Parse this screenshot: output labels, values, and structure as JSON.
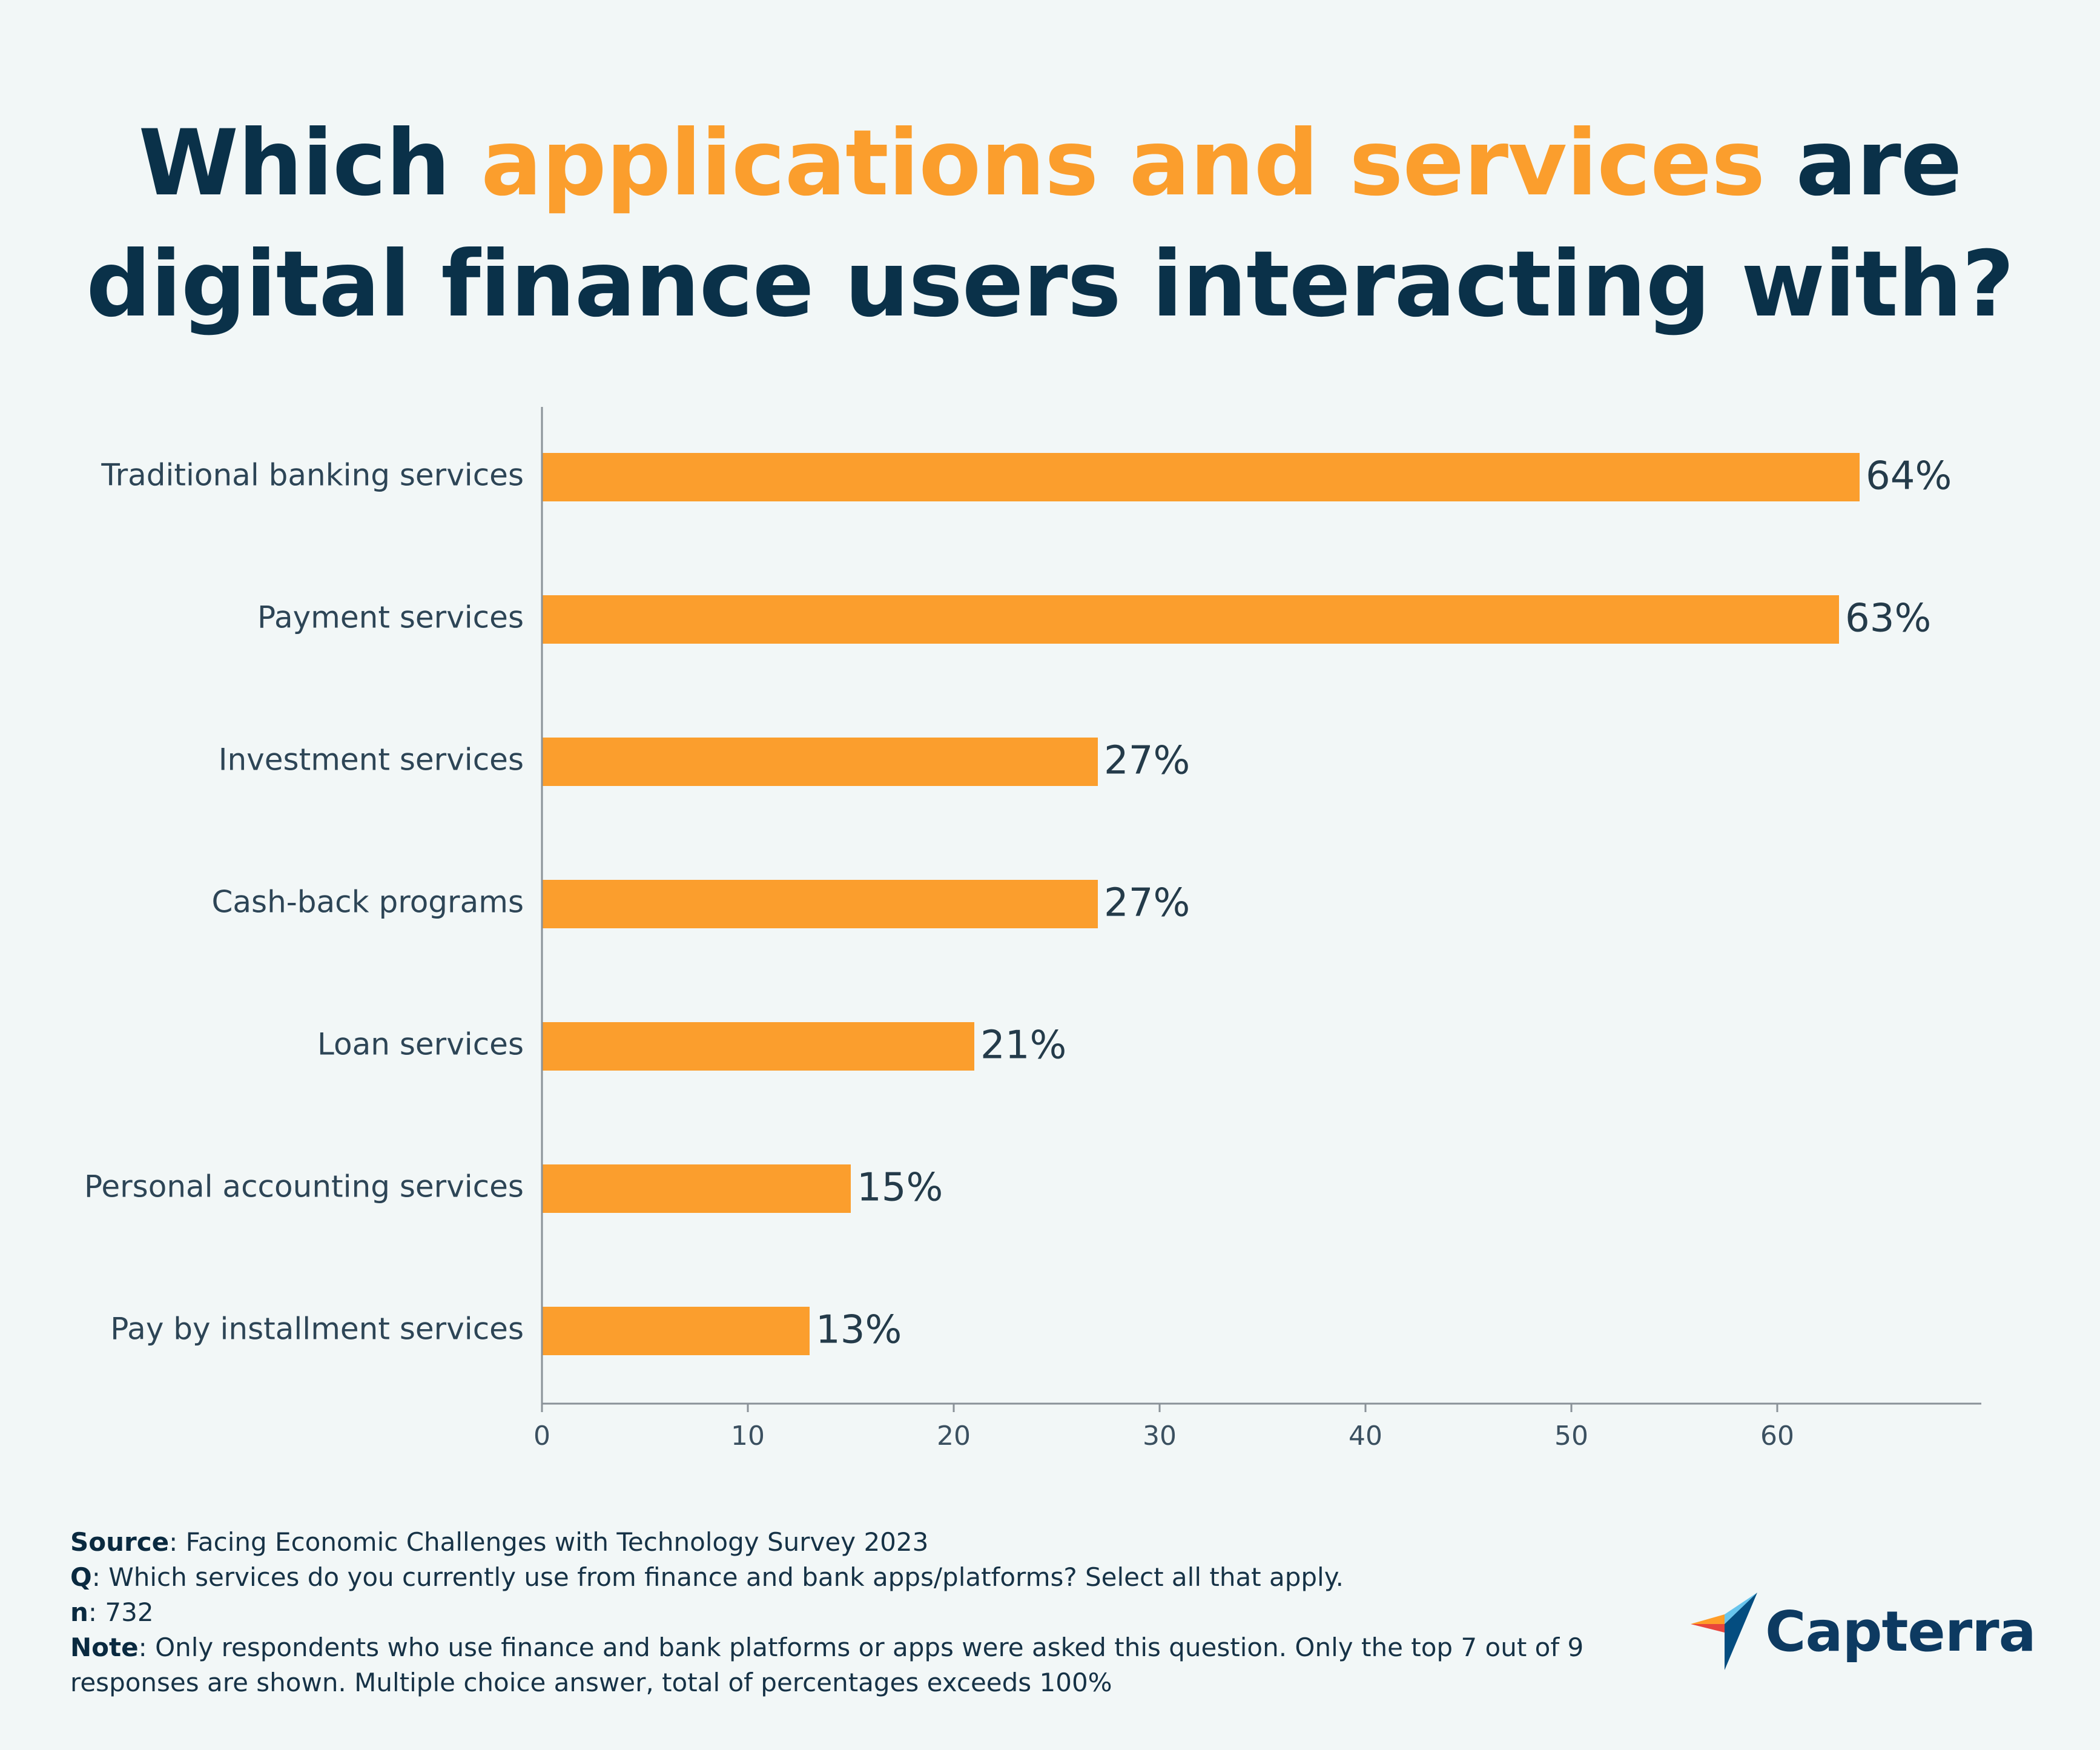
{
  "title": {
    "part1": "Which ",
    "highlight": "applications and services",
    "part2": " are",
    "line2": "digital finance users interacting with?"
  },
  "colors": {
    "bar": "#fb9e2d",
    "title": "#0a3149",
    "highlight": "#fb9e2d",
    "axis": "#8a9298",
    "background": "#f2f7f7"
  },
  "chart_data": {
    "type": "bar",
    "orientation": "horizontal",
    "categories": [
      "Traditional banking services",
      "Payment services",
      "Investment services",
      "Cash-back programs",
      "Loan services",
      "Personal accounting services",
      "Pay by installment services"
    ],
    "values": [
      64,
      63,
      27,
      27,
      21,
      15,
      13
    ],
    "value_labels": [
      "64%",
      "63%",
      "27%",
      "27%",
      "21%",
      "15%",
      "13%"
    ],
    "xticks": [
      0,
      10,
      20,
      30,
      40,
      50,
      60
    ],
    "xlim": [
      0,
      70
    ],
    "xlabel": "",
    "ylabel": "",
    "grid": false
  },
  "footer": {
    "source_label": "Source",
    "source_text": ": Facing Economic Challenges with Technology Survey 2023",
    "q_label": "Q",
    "q_text": ": Which services do you currently use from finance and bank apps/platforms? Select all that apply.",
    "n_label": "n",
    "n_text": ": 732",
    "note_label": "Note",
    "note_text": ": Only respondents who use finance and bank platforms or apps were asked this question. Only the top 7 out of 9 responses are shown. Multiple choice answer, total of percentages exceeds 100%"
  },
  "logo": {
    "text": "Capterra",
    "icon": "capterra-arrow-icon"
  }
}
